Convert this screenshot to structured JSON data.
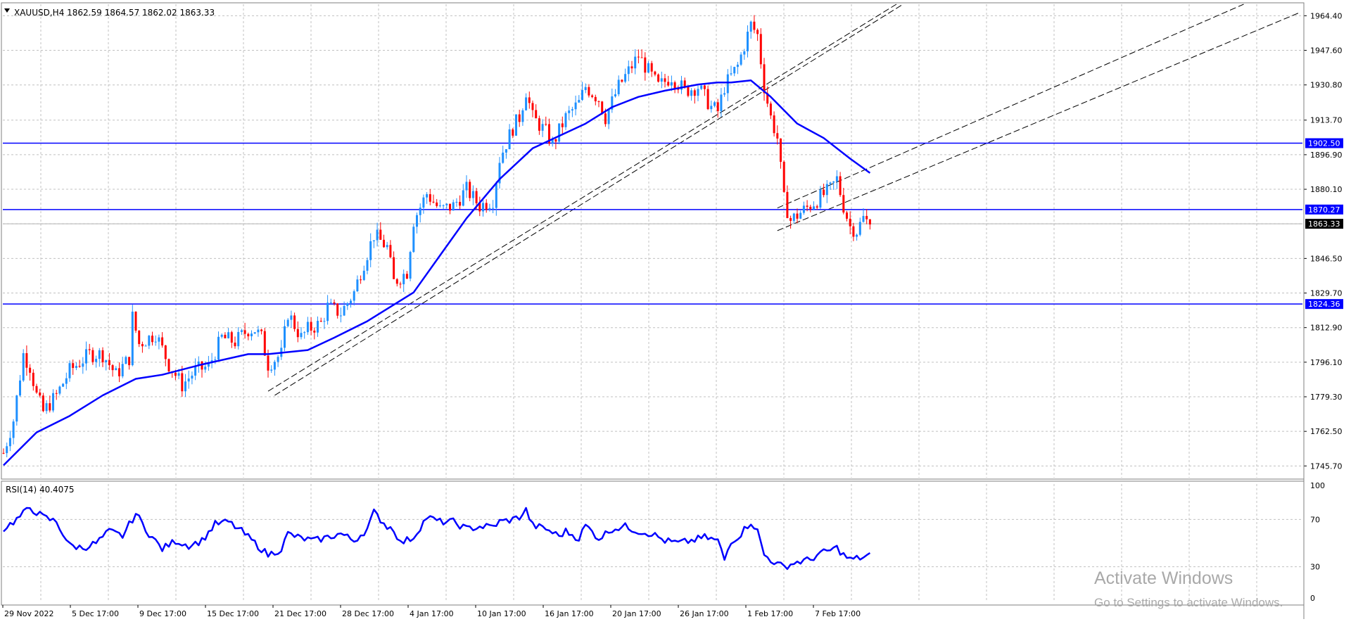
{
  "header": {
    "symbol_line": "XAUUSD,H4  1862.59 1864.57 1862.02 1863.33",
    "indicator_label": "RSI(14) 40.4075"
  },
  "watermark": {
    "title": "Activate Windows",
    "subtitle": "Go to Settings to activate Windows."
  },
  "colors": {
    "bull": "#1e90ff",
    "bear": "#ff0000",
    "ma": "#0000ff",
    "rsi": "#0000ff",
    "hline": "#0000ff",
    "grid": "#c0c0c0",
    "last_price_bg": "#000000"
  },
  "chart_data": [
    {
      "type": "candlestick",
      "title": "XAUUSD,H4",
      "xlabel": "",
      "ylabel": "",
      "ylim": [
        1740,
        1970
      ],
      "grid": true,
      "y_ticks": [
        "1964.40",
        "1947.60",
        "1930.80",
        "1913.70",
        "1896.90",
        "1880.10",
        "1863.33",
        "1846.50",
        "1829.70",
        "1812.90",
        "1796.10",
        "1779.30",
        "1762.50",
        "1745.70"
      ],
      "x_ticks": [
        "29 Nov 2022",
        "5 Dec 17:00",
        "9 Dec 17:00",
        "15 Dec 17:00",
        "21 Dec 17:00",
        "28 Dec 17:00",
        "4 Jan 17:00",
        "10 Jan 17:00",
        "16 Jan 17:00",
        "20 Jan 17:00",
        "26 Jan 17:00",
        "1 Feb 17:00",
        "7 Feb 17:00"
      ],
      "last_price": "1863.33",
      "horizontal_levels": [
        {
          "label": "1902.50",
          "value": 1902.5
        },
        {
          "label": "1870.27",
          "value": 1870.27
        },
        {
          "label": "1824.36",
          "value": 1824.36
        }
      ],
      "price_path": [
        [
          0,
          1752
        ],
        [
          3,
          1768
        ],
        [
          6,
          1800
        ],
        [
          8,
          1794
        ],
        [
          10,
          1780
        ],
        [
          12,
          1772
        ],
        [
          16,
          1780
        ],
        [
          20,
          1792
        ],
        [
          26,
          1800
        ],
        [
          30,
          1800
        ],
        [
          34,
          1790
        ],
        [
          38,
          1798
        ],
        [
          39,
          1818
        ],
        [
          41,
          1805
        ],
        [
          46,
          1810
        ],
        [
          50,
          1795
        ],
        [
          54,
          1785
        ],
        [
          58,
          1792
        ],
        [
          62,
          1794
        ],
        [
          66,
          1808
        ],
        [
          70,
          1806
        ],
        [
          74,
          1812
        ],
        [
          76,
          1812
        ],
        [
          78,
          1808
        ],
        [
          80,
          1795
        ],
        [
          84,
          1800
        ],
        [
          86,
          1820
        ],
        [
          90,
          1808
        ],
        [
          92,
          1812
        ],
        [
          96,
          1815
        ],
        [
          98,
          1823
        ],
        [
          102,
          1820
        ],
        [
          106,
          1830
        ],
        [
          108,
          1840
        ],
        [
          112,
          1858
        ],
        [
          116,
          1852
        ],
        [
          118,
          1835
        ],
        [
          122,
          1840
        ],
        [
          124,
          1865
        ],
        [
          128,
          1878
        ],
        [
          132,
          1870
        ],
        [
          136,
          1872
        ],
        [
          140,
          1880
        ],
        [
          144,
          1872
        ],
        [
          148,
          1875
        ],
        [
          150,
          1895
        ],
        [
          154,
          1910
        ],
        [
          156,
          1915
        ],
        [
          158,
          1928
        ],
        [
          160,
          1915
        ],
        [
          164,
          1908
        ],
        [
          166,
          1902
        ],
        [
          170,
          1915
        ],
        [
          174,
          1922
        ],
        [
          176,
          1930
        ],
        [
          180,
          1924
        ],
        [
          182,
          1915
        ],
        [
          186,
          1930
        ],
        [
          190,
          1940
        ],
        [
          192,
          1945
        ],
        [
          196,
          1935
        ],
        [
          198,
          1930
        ],
        [
          202,
          1935
        ],
        [
          206,
          1928
        ],
        [
          210,
          1930
        ],
        [
          214,
          1920
        ],
        [
          216,
          1918
        ],
        [
          218,
          1930
        ],
        [
          222,
          1940
        ],
        [
          226,
          1960
        ],
        [
          228,
          1955
        ],
        [
          230,
          1930
        ],
        [
          232,
          1915
        ],
        [
          234,
          1905
        ],
        [
          236,
          1875
        ],
        [
          238,
          1865
        ],
        [
          242,
          1870
        ],
        [
          246,
          1875
        ],
        [
          250,
          1880
        ],
        [
          252,
          1885
        ],
        [
          254,
          1872
        ],
        [
          256,
          1862
        ],
        [
          258,
          1860
        ],
        [
          260,
          1866
        ],
        [
          262,
          1863
        ]
      ],
      "moving_average": [
        [
          0,
          1746
        ],
        [
          10,
          1762
        ],
        [
          20,
          1770
        ],
        [
          30,
          1780
        ],
        [
          40,
          1788
        ],
        [
          48,
          1790
        ],
        [
          60,
          1795
        ],
        [
          74,
          1800
        ],
        [
          80,
          1800
        ],
        [
          92,
          1802
        ],
        [
          100,
          1808
        ],
        [
          110,
          1816
        ],
        [
          124,
          1830
        ],
        [
          132,
          1848
        ],
        [
          140,
          1866
        ],
        [
          150,
          1885
        ],
        [
          160,
          1900
        ],
        [
          168,
          1906
        ],
        [
          176,
          1912
        ],
        [
          184,
          1920
        ],
        [
          192,
          1925
        ],
        [
          200,
          1928
        ],
        [
          210,
          1931
        ],
        [
          216,
          1932
        ],
        [
          220,
          1932
        ],
        [
          226,
          1933
        ],
        [
          232,
          1925
        ],
        [
          240,
          1912
        ],
        [
          248,
          1905
        ],
        [
          256,
          1895
        ],
        [
          262,
          1888
        ]
      ],
      "trend_lines": [
        {
          "name": "channel-lower-1",
          "from": [
            80,
            1782
          ],
          "to": [
            270,
            1970
          ],
          "style": "dashed"
        },
        {
          "name": "channel-lower-2",
          "from": [
            82,
            1780
          ],
          "to": [
            272,
            1970
          ],
          "style": "dashed"
        },
        {
          "name": "channel-upper-1",
          "from": [
            234,
            1871
          ],
          "to": [
            375,
            1970
          ],
          "style": "dashed"
        },
        {
          "name": "channel-upper-2",
          "from": [
            234,
            1860
          ],
          "to": [
            392,
            1966
          ],
          "style": "dashed"
        }
      ]
    },
    {
      "type": "line",
      "title": "RSI(14) 40.4075",
      "ylim": [
        0,
        100
      ],
      "y_ticks": [
        "100",
        "70",
        "30",
        "0"
      ],
      "series": [
        {
          "name": "RSI(14)",
          "values": [
            [
              0,
              62
            ],
            [
              4,
              70
            ],
            [
              8,
              80
            ],
            [
              12,
              72
            ],
            [
              16,
              68
            ],
            [
              20,
              48
            ],
            [
              24,
              46
            ],
            [
              28,
              50
            ],
            [
              32,
              60
            ],
            [
              36,
              56
            ],
            [
              40,
              75
            ],
            [
              44,
              58
            ],
            [
              48,
              45
            ],
            [
              52,
              52
            ],
            [
              56,
              48
            ],
            [
              60,
              52
            ],
            [
              64,
              66
            ],
            [
              68,
              68
            ],
            [
              72,
              60
            ],
            [
              76,
              50
            ],
            [
              80,
              40
            ],
            [
              84,
              45
            ],
            [
              86,
              58
            ],
            [
              90,
              54
            ],
            [
              94,
              52
            ],
            [
              98,
              55
            ],
            [
              102,
              58
            ],
            [
              106,
              52
            ],
            [
              110,
              62
            ],
            [
              112,
              76
            ],
            [
              116,
              64
            ],
            [
              118,
              62
            ],
            [
              120,
              50
            ],
            [
              124,
              55
            ],
            [
              128,
              72
            ],
            [
              132,
              68
            ],
            [
              136,
              68
            ],
            [
              140,
              62
            ],
            [
              144,
              64
            ],
            [
              148,
              64
            ],
            [
              150,
              68
            ],
            [
              154,
              70
            ],
            [
              156,
              72
            ],
            [
              158,
              78
            ],
            [
              160,
              65
            ],
            [
              164,
              62
            ],
            [
              168,
              56
            ],
            [
              170,
              60
            ],
            [
              174,
              54
            ],
            [
              176,
              65
            ],
            [
              180,
              54
            ],
            [
              184,
              62
            ],
            [
              188,
              64
            ],
            [
              192,
              60
            ],
            [
              196,
              58
            ],
            [
              200,
              52
            ],
            [
              204,
              50
            ],
            [
              208,
              52
            ],
            [
              212,
              55
            ],
            [
              216,
              52
            ],
            [
              218,
              36
            ],
            [
              220,
              52
            ],
            [
              222,
              55
            ],
            [
              226,
              68
            ],
            [
              228,
              60
            ],
            [
              230,
              40
            ],
            [
              234,
              32
            ],
            [
              236,
              30
            ],
            [
              240,
              34
            ],
            [
              244,
              36
            ],
            [
              246,
              40
            ],
            [
              248,
              42
            ],
            [
              250,
              44
            ],
            [
              252,
              46
            ],
            [
              254,
              40
            ],
            [
              256,
              36
            ],
            [
              260,
              38
            ],
            [
              262,
              40
            ]
          ]
        }
      ]
    }
  ]
}
